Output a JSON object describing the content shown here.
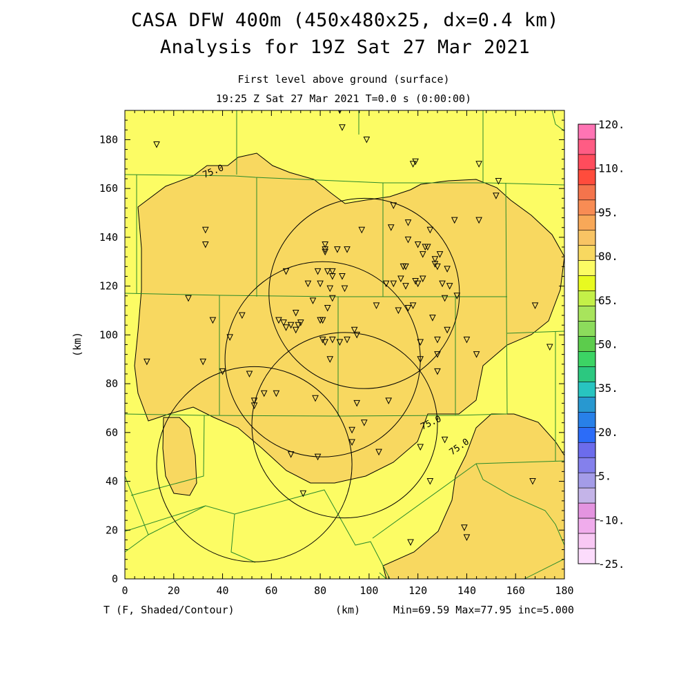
{
  "header": {
    "title_line1": "CASA DFW 400m (450x480x25, dx=0.4 km)",
    "title_line2": "Analysis for 19Z Sat 27 Mar 2021",
    "subtitle_line1": "First level above ground (surface)",
    "subtitle_line2": "19:25 Z Sat 27 Mar 2021   T=0.0 s (0:00:00)"
  },
  "footer": {
    "variable": "T (F, Shaded/Contour)",
    "unit": "(km)",
    "stats": "Min=69.59 Max=77.95 inc=5.000"
  },
  "colors": {
    "warm_fill": "#f8d860",
    "cool_fill": "#fcfc64",
    "county_lines": "#2a8a2a",
    "contours": "#000000"
  },
  "chart_data": {
    "type": "heatmap",
    "title": "CASA DFW 400m (450x480x25, dx=0.4 km)",
    "xlabel": "(km)",
    "ylabel": "(km)",
    "xlim": [
      0,
      180
    ],
    "ylim": [
      0,
      192
    ],
    "x_ticks": [
      0,
      20,
      40,
      60,
      80,
      100,
      120,
      140,
      160,
      180
    ],
    "y_ticks": [
      0,
      20,
      40,
      60,
      80,
      100,
      120,
      140,
      160,
      180
    ],
    "contour_label": "75.0",
    "contour_levels": [
      75.0
    ],
    "min": 69.59,
    "max": 77.95,
    "colorbar": {
      "labels": [
        "120.",
        "110.",
        "95.",
        "80.",
        "65.",
        "50.",
        "35.",
        "20.",
        "5.",
        "-10.",
        "-25."
      ],
      "colors": [
        "#ff74b4",
        "#ff5c84",
        "#ff4c5c",
        "#ff4c3c",
        "#f4744c",
        "#f88c54",
        "#f8a858",
        "#f8c464",
        "#f8d860",
        "#fcfc64",
        "#e8fa20",
        "#c4f048",
        "#a8e45c",
        "#8cdc5c",
        "#5ccc4c",
        "#3cd464",
        "#2cc880",
        "#28c4c0",
        "#2898d0",
        "#2880e8",
        "#2c6cf8",
        "#6c6cec",
        "#8480ec",
        "#a49ce8",
        "#c4b4e8",
        "#e494e0",
        "#f0acec",
        "#f8c8f4",
        "#fcdcfc"
      ]
    },
    "radar_rings": [
      {
        "cx": 98,
        "cy": 117,
        "r": 39
      },
      {
        "cx": 81,
        "cy": 90,
        "r": 40
      },
      {
        "cx": 90,
        "cy": 63,
        "r": 38
      },
      {
        "cx": 53,
        "cy": 47,
        "r": 40
      }
    ],
    "stations": [
      [
        13,
        178
      ],
      [
        9,
        89
      ],
      [
        26,
        115
      ],
      [
        33,
        143
      ],
      [
        33,
        137
      ],
      [
        36,
        106
      ],
      [
        32,
        89
      ],
      [
        40,
        85
      ],
      [
        43,
        99
      ],
      [
        48,
        108
      ],
      [
        51,
        84
      ],
      [
        53,
        73
      ],
      [
        53,
        71
      ],
      [
        57,
        76
      ],
      [
        62,
        76
      ],
      [
        63,
        106
      ],
      [
        65,
        105
      ],
      [
        66,
        103
      ],
      [
        68,
        104
      ],
      [
        70,
        109
      ],
      [
        70,
        102
      ],
      [
        71,
        104
      ],
      [
        72,
        105
      ],
      [
        66,
        126
      ],
      [
        75,
        121
      ],
      [
        77,
        114
      ],
      [
        80,
        121
      ],
      [
        79,
        126
      ],
      [
        80,
        106
      ],
      [
        81,
        106
      ],
      [
        81,
        98
      ],
      [
        82,
        97
      ],
      [
        83,
        111
      ],
      [
        83,
        126
      ],
      [
        85,
        126
      ],
      [
        85,
        124
      ],
      [
        84,
        119
      ],
      [
        85,
        115
      ],
      [
        85,
        98
      ],
      [
        84,
        90
      ],
      [
        82,
        134
      ],
      [
        82,
        135
      ],
      [
        82,
        137
      ],
      [
        87,
        135
      ],
      [
        91,
        135
      ],
      [
        89,
        124
      ],
      [
        90,
        119
      ],
      [
        88,
        97
      ],
      [
        91,
        98
      ],
      [
        94,
        102
      ],
      [
        95,
        100
      ],
      [
        95,
        72
      ],
      [
        93,
        61
      ],
      [
        93,
        56
      ],
      [
        98,
        64
      ],
      [
        97,
        143
      ],
      [
        103,
        112
      ],
      [
        104,
        52
      ],
      [
        107,
        121
      ],
      [
        109,
        144
      ],
      [
        110,
        153
      ],
      [
        110,
        121
      ],
      [
        112,
        110
      ],
      [
        113,
        123
      ],
      [
        114,
        128
      ],
      [
        115,
        128
      ],
      [
        115,
        120
      ],
      [
        116,
        146
      ],
      [
        116,
        139
      ],
      [
        116,
        111
      ],
      [
        118,
        112
      ],
      [
        119,
        122
      ],
      [
        120,
        137
      ],
      [
        120,
        121
      ],
      [
        121,
        97
      ],
      [
        122,
        123
      ],
      [
        122,
        133
      ],
      [
        121,
        90
      ],
      [
        123,
        136
      ],
      [
        124,
        136
      ],
      [
        125,
        143
      ],
      [
        126,
        107
      ],
      [
        127,
        131
      ],
      [
        127,
        129
      ],
      [
        128,
        128
      ],
      [
        128,
        98
      ],
      [
        128,
        92
      ],
      [
        128,
        85
      ],
      [
        129,
        133
      ],
      [
        130,
        121
      ],
      [
        131,
        115
      ],
      [
        132,
        102
      ],
      [
        132,
        127
      ],
      [
        133,
        120
      ],
      [
        135,
        147
      ],
      [
        136,
        116
      ],
      [
        140,
        98
      ],
      [
        144,
        92
      ],
      [
        145,
        147
      ],
      [
        145,
        170
      ],
      [
        152,
        157
      ],
      [
        153,
        163
      ],
      [
        168,
        112
      ],
      [
        174,
        95
      ],
      [
        118,
        170
      ],
      [
        119,
        171
      ],
      [
        88,
        192
      ],
      [
        89,
        185
      ],
      [
        99,
        180
      ],
      [
        68,
        51
      ],
      [
        79,
        50
      ],
      [
        73,
        35
      ],
      [
        108,
        73
      ],
      [
        121,
        54
      ],
      [
        131,
        57
      ],
      [
        125,
        40
      ],
      [
        117,
        15
      ],
      [
        139,
        21
      ],
      [
        140,
        17
      ],
      [
        78,
        74
      ],
      [
        167,
        40
      ]
    ]
  }
}
